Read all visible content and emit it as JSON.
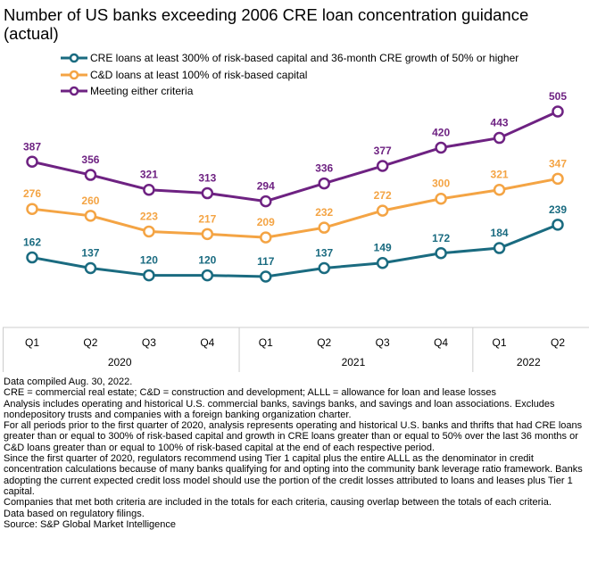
{
  "title": "Number of US banks exceeding 2006 CRE loan concentration guidance (actual)",
  "chart_data": {
    "type": "line",
    "title": "Number of US banks exceeding 2006 CRE loan concentration guidance (actual)",
    "xlabel": "",
    "ylabel": "",
    "grid": false,
    "legend_position": "top",
    "categories": [
      "Q1",
      "Q2",
      "Q3",
      "Q4",
      "Q1",
      "Q2",
      "Q3",
      "Q4",
      "Q1",
      "Q2"
    ],
    "year_groups": [
      {
        "label": "2020",
        "count": 4
      },
      {
        "label": "2021",
        "count": 4
      },
      {
        "label": "2022",
        "count": 2
      }
    ],
    "ylim": [
      0,
      520
    ],
    "series": [
      {
        "name": "CRE loans at least 300% of risk-based capital and 36-month CRE growth of 50% or higher",
        "color": "#1a6b80",
        "values": [
          162,
          137,
          120,
          120,
          117,
          137,
          149,
          172,
          184,
          239
        ]
      },
      {
        "name": "C&D loans at least 100% of risk-based capital",
        "color": "#f4a444",
        "values": [
          276,
          260,
          223,
          217,
          209,
          232,
          272,
          300,
          321,
          347
        ]
      },
      {
        "name": "Meeting either criteria",
        "color": "#6e2282",
        "values": [
          387,
          356,
          321,
          313,
          294,
          336,
          377,
          420,
          443,
          505
        ]
      }
    ]
  },
  "notes": [
    "Data compiled Aug. 30, 2022.",
    "CRE = commercial real estate; C&D = construction and development; ALLL = allowance for loan and lease losses",
    "Analysis includes operating and historical U.S. commercial banks, savings banks, and savings and loan associations. Excludes nondepository trusts and companies with a foreign banking organization charter.",
    "For all periods prior to the first quarter of 2020, analysis represents operating and historical U.S. banks and thrifts that had CRE loans greater than or equal to 300% of risk-based capital and growth in CRE loans greater than or equal to 50% over the last 36 months or C&D loans greater than or equal to 100% of risk-based capital at the end of each respective period.",
    "Since the first quarter of 2020, regulators recommend using Tier 1 capital plus the entire ALLL as the denominator in credit concentration calculations because of many banks qualifying for and opting into the community bank leverage ratio framework. Banks adopting the current expected credit loss model should use the portion of the credit losses attributed to loans and leases plus Tier 1 capital.",
    "Companies that met both criteria are included in the totals for each criteria, causing overlap between the totals of each criteria.",
    "Data based on regulatory filings.",
    "Source: S&P Global Market Intelligence"
  ]
}
